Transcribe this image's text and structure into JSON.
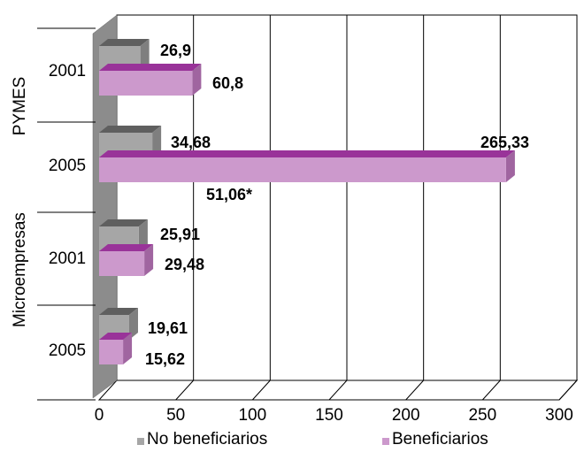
{
  "chart_data": {
    "type": "bar",
    "orientation": "horizontal",
    "three_d": true,
    "groups": [
      {
        "name": "PYMES",
        "years": [
          "2001",
          "2005"
        ]
      },
      {
        "name": "Microempresas",
        "years": [
          "2001",
          "2005"
        ]
      }
    ],
    "categories": [
      "PYMES 2001",
      "PYMES 2005",
      "Microempresas 2001",
      "Microempresas 2005"
    ],
    "series": [
      {
        "name": "No beneficiarios",
        "values": [
          26.9,
          34.68,
          25.91,
          19.61
        ],
        "labels": [
          "26,9",
          "34,68",
          "25,91",
          "19,61"
        ],
        "color": "#a6a6a6"
      },
      {
        "name": "Beneficiarios",
        "values": [
          60.8,
          265.33,
          29.48,
          15.62
        ],
        "labels": [
          "60,8",
          "265,33",
          "29,48",
          "15,62"
        ],
        "color": "#cc99cc"
      }
    ],
    "annotations": [
      {
        "text": "51,06*",
        "category": "PYMES 2005"
      }
    ],
    "xlim": [
      0,
      300
    ],
    "xticks": [
      "0",
      "50",
      "100",
      "150",
      "200",
      "250",
      "300"
    ],
    "grid": true,
    "legend_position": "bottom"
  }
}
